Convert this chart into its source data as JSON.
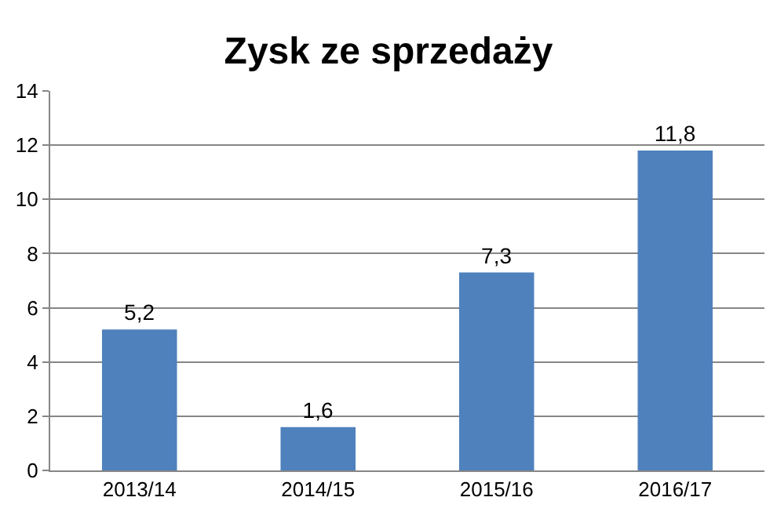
{
  "chart_data": {
    "type": "bar",
    "title": "Zysk ze sprzedaży",
    "categories": [
      "2013/14",
      "2014/15",
      "2015/16",
      "2016/17"
    ],
    "values": [
      5.2,
      1.6,
      7.3,
      11.8
    ],
    "value_labels": [
      "5,2",
      "1,6",
      "7,3",
      "11,8"
    ],
    "color": "#4f81bd",
    "ylim": [
      0,
      14
    ],
    "yticks": [
      0,
      2,
      4,
      6,
      8,
      10,
      12,
      14
    ],
    "grid": "y"
  }
}
